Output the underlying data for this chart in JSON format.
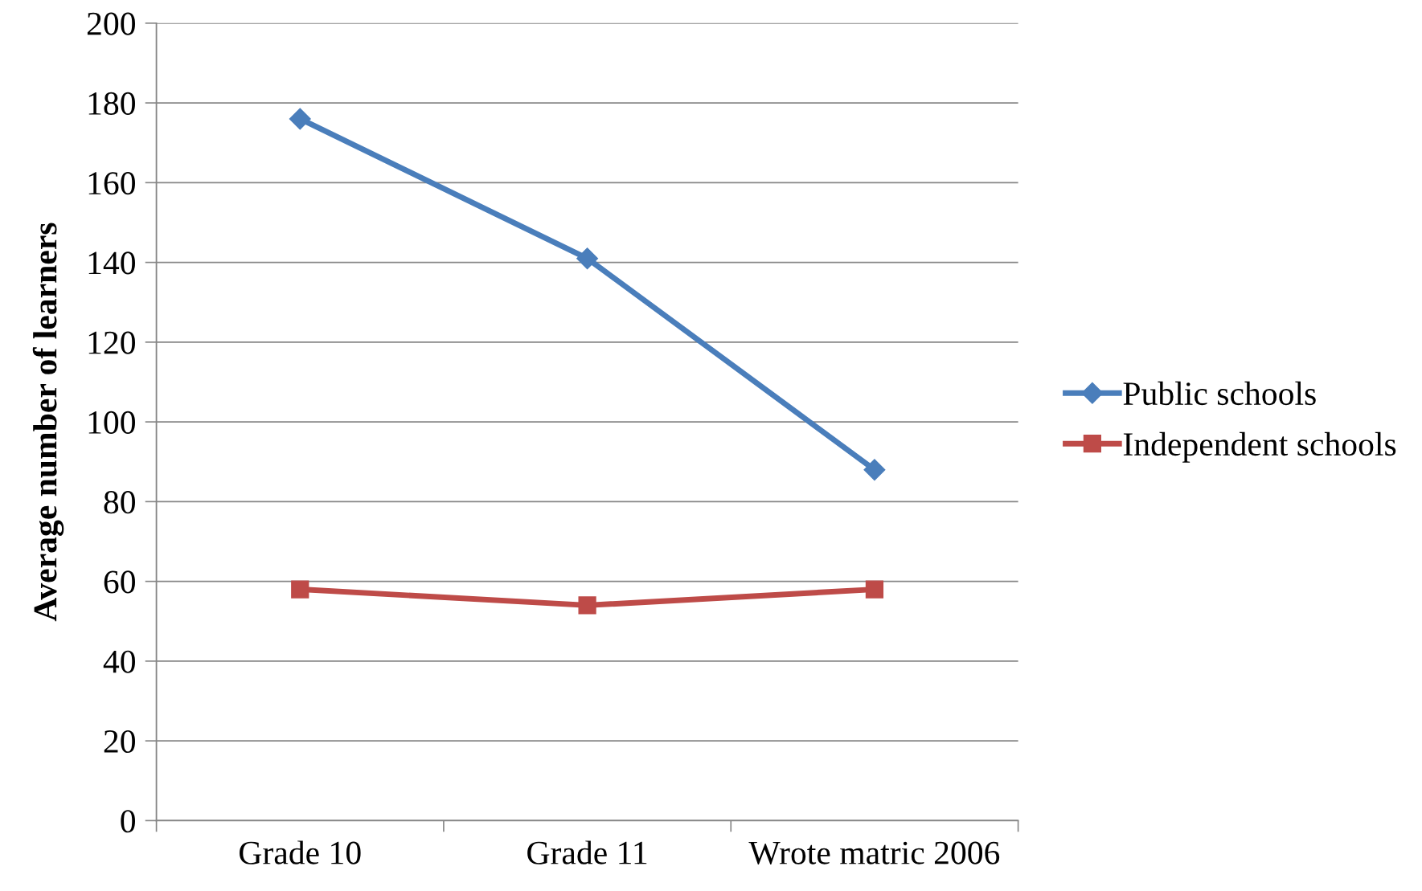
{
  "chart_data": {
    "type": "line",
    "ylabel": "Average number of learners",
    "categories": [
      "Grade 10",
      "Grade 11",
      "Wrote matric 2006"
    ],
    "series": [
      {
        "name": "Public schools",
        "color": "#4a7ebb",
        "marker": "diamond",
        "values": [
          176,
          141,
          88
        ]
      },
      {
        "name": "Independent schools",
        "color": "#be4b48",
        "marker": "square",
        "values": [
          58,
          54,
          58
        ]
      }
    ],
    "ylim": [
      0,
      200
    ],
    "yticks": [
      0,
      20,
      40,
      60,
      80,
      100,
      120,
      140,
      160,
      180,
      200
    ],
    "grid": "y",
    "legend": "right",
    "line_style": "solid"
  }
}
